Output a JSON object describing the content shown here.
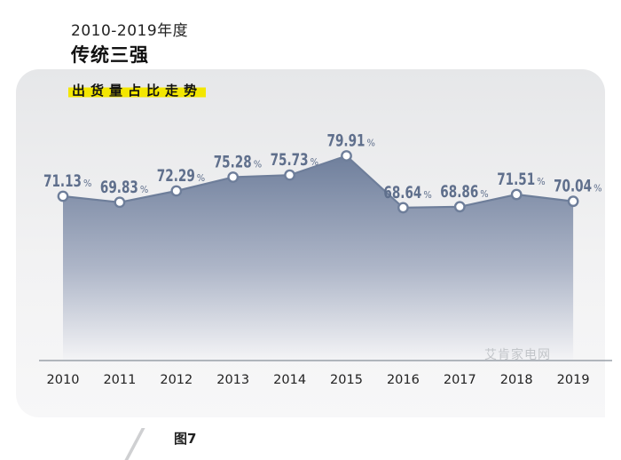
{
  "header": {
    "year_range": "2010-2019年度",
    "title": "传统三强",
    "subtitle": "出货量占比走势"
  },
  "figure_label": "图7",
  "watermark": "艾肯家电网",
  "colors": {
    "area_top": "#6f7f9c",
    "area_bottom": "#f4f4f6",
    "line": "#6e7e9a",
    "label": "#5f6f8c",
    "highlight": "#f3e600"
  },
  "chart_data": {
    "type": "area",
    "title": "出货量占比走势",
    "x": [
      "2010",
      "2011",
      "2012",
      "2013",
      "2014",
      "2015",
      "2016",
      "2017",
      "2018",
      "2019"
    ],
    "values": [
      71.13,
      69.83,
      72.29,
      75.28,
      75.73,
      79.91,
      68.64,
      68.86,
      71.51,
      70.04
    ],
    "labels": [
      "71.13",
      "69.83",
      "72.29",
      "75.28",
      "75.73",
      "79.91",
      "68.64",
      "68.86",
      "71.51",
      "70.04"
    ],
    "unit": "%",
    "xlabel": "",
    "ylabel": "",
    "grid": false,
    "legend": "none"
  }
}
